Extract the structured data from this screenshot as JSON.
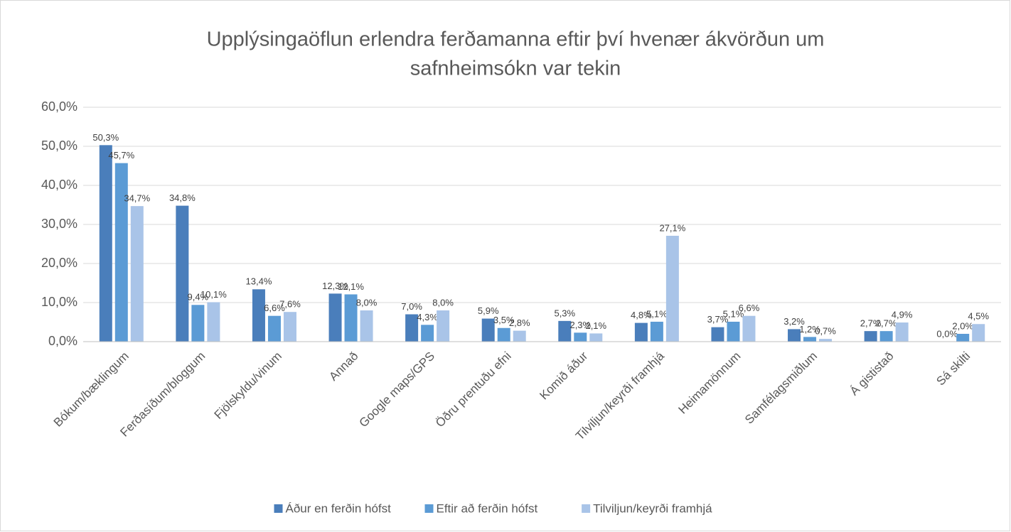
{
  "chart_data": {
    "type": "bar",
    "title": [
      "Upplýsingaöflun erlendra ferðamanna eftir því hvenær ákvörðun um",
      "safnheimsókn var tekin"
    ],
    "categories": [
      "Bókum/bæklingum",
      "Ferðasíðum/bloggum",
      "Fjölskyldu/vinum",
      "Annað",
      "Google maps/GPS",
      "Öðru prentuðu efni",
      "Komið áður",
      "Tilviljun/keyrði framhjá",
      "Heimamönnum",
      "Samfélagsmiðlum",
      "Á gististað",
      "Sá skilti"
    ],
    "series": [
      {
        "name": "Áður en ferðin hófst",
        "color": "#4a7ebb",
        "values": [
          50.3,
          34.8,
          13.4,
          12.3,
          7.0,
          5.9,
          5.3,
          4.8,
          3.7,
          3.2,
          2.7,
          0.0
        ],
        "value_labels": [
          "50,3%",
          "34,8%",
          "13,4%",
          "12,3%",
          "7,0%",
          "5,9%",
          "5,3%",
          "4,8%",
          "3,7%",
          "3,2%",
          "2,7%",
          "0,0%"
        ]
      },
      {
        "name": "Eftir að ferðin hófst",
        "color": "#5b9bd5",
        "values": [
          45.7,
          9.4,
          6.6,
          12.1,
          4.3,
          3.5,
          2.3,
          5.1,
          5.1,
          1.2,
          2.7,
          2.0
        ],
        "value_labels": [
          "45,7%",
          "9,4%",
          "6,6%",
          "12,1%",
          "4,3%",
          "3,5%",
          "2,3%",
          "5,1%",
          "5,1%",
          "1,2%",
          "2,7%",
          "2,0%"
        ]
      },
      {
        "name": "Tilviljun/keyrði framhjá",
        "color": "#a9c4e8",
        "values": [
          34.7,
          10.1,
          7.6,
          8.0,
          8.0,
          2.8,
          2.1,
          27.1,
          6.6,
          0.7,
          4.9,
          4.5
        ],
        "value_labels": [
          "34,7%",
          "10,1%",
          "7,6%",
          "8,0%",
          "8,0%",
          "2,8%",
          "2,1%",
          "27,1%",
          "6,6%",
          "0,7%",
          "4,9%",
          "4,5%"
        ]
      }
    ],
    "ylim": [
      0,
      60
    ],
    "yticks": [
      {
        "value": 0,
        "label": "0,0%"
      },
      {
        "value": 10,
        "label": "10,0%"
      },
      {
        "value": 20,
        "label": "20,0%"
      },
      {
        "value": 30,
        "label": "30,0%"
      },
      {
        "value": 40,
        "label": "40,0%"
      },
      {
        "value": 50,
        "label": "50,0%"
      },
      {
        "value": 60,
        "label": "60,0%"
      }
    ],
    "grid": true,
    "legend": "bottom"
  }
}
